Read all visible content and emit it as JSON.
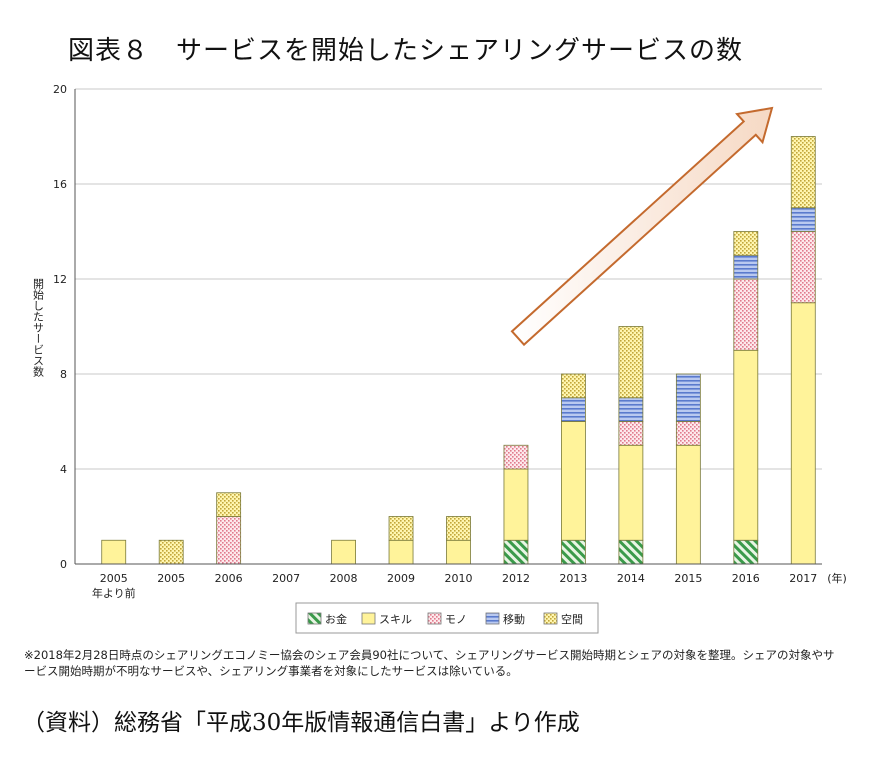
{
  "title": "図表８　サービスを開始したシェアリングサービスの数",
  "footnote": "※2018年2月28日時点のシェアリングエコノミー協会のシェア会員90社について、シェアリングサービス開始時期とシェアの対象を整理。シェアの対象やサービス開始時期が不明なサービスや、シェアリング事業者を対象にしたサービスは除いている。",
  "source": "（資料）総務省「平成30年版情報通信白書」より作成",
  "chart_data": {
    "type": "bar",
    "stacked": true,
    "ylabel": "開始したサービス数",
    "xunit": "(年)",
    "ylim": [
      0,
      20
    ],
    "yticks": [
      0,
      4,
      8,
      12,
      16,
      20
    ],
    "grid": true,
    "legend_position": "bottom",
    "categories": [
      [
        "2005",
        "年より前"
      ],
      [
        "2005"
      ],
      [
        "2006"
      ],
      [
        "2007"
      ],
      [
        "2008"
      ],
      [
        "2009"
      ],
      [
        "2010"
      ],
      [
        "2012"
      ],
      [
        "2013"
      ],
      [
        "2014"
      ],
      [
        "2015"
      ],
      [
        "2016"
      ],
      [
        "2017"
      ]
    ],
    "series": [
      {
        "name": "お金",
        "color": "#3a9a4a",
        "pattern": "diag",
        "values": [
          0,
          0,
          0,
          0,
          0,
          0,
          0,
          1,
          1,
          1,
          0,
          1,
          0
        ]
      },
      {
        "name": "スキル",
        "color": "#fff39a",
        "pattern": "solid",
        "values": [
          1,
          0,
          0,
          0,
          1,
          1,
          1,
          3,
          5,
          4,
          5,
          8,
          11
        ]
      },
      {
        "name": "モノ",
        "color": "#e88a9a",
        "pattern": "dots",
        "values": [
          0,
          0,
          2,
          0,
          0,
          0,
          0,
          1,
          0,
          1,
          1,
          3,
          3
        ]
      },
      {
        "name": "移動",
        "color": "#6f8fd6",
        "pattern": "hlines",
        "values": [
          0,
          0,
          0,
          0,
          0,
          0,
          0,
          0,
          1,
          1,
          2,
          1,
          1
        ]
      },
      {
        "name": "空間",
        "color": "#c9b23a",
        "pattern": "check",
        "values": [
          0,
          1,
          1,
          0,
          0,
          1,
          1,
          0,
          1,
          3,
          0,
          1,
          3
        ]
      }
    ],
    "annotation": "upward-trend-arrow"
  }
}
